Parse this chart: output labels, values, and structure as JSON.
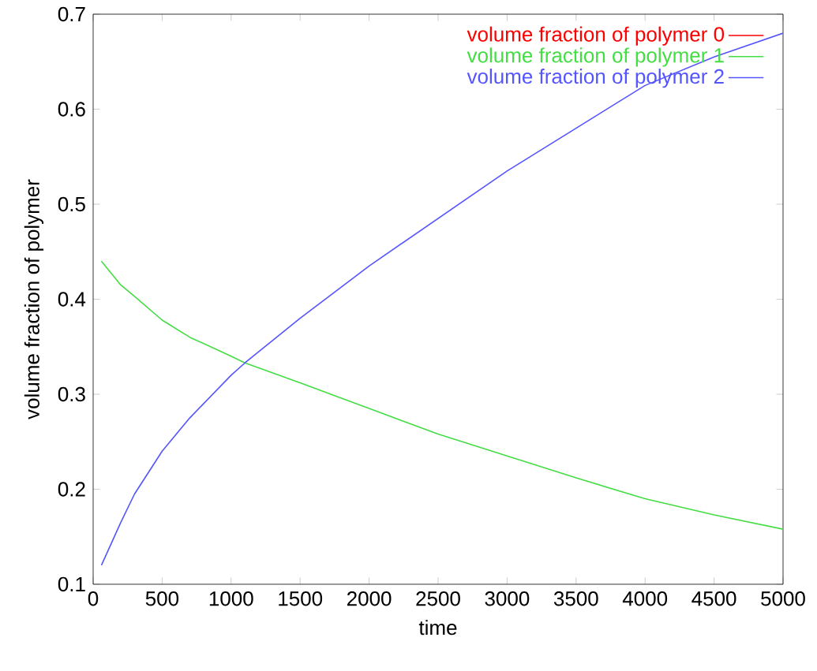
{
  "chart_data": {
    "type": "line",
    "xlabel": "time",
    "ylabel": "volume fraction of polymer",
    "xlim": [
      0,
      5000
    ],
    "ylim": [
      0.1,
      0.7
    ],
    "xticks": [
      0,
      500,
      1000,
      1500,
      2000,
      2500,
      3000,
      3500,
      4000,
      4500,
      5000
    ],
    "yticks": [
      0.1,
      0.2,
      0.3,
      0.4,
      0.5,
      0.6,
      0.7
    ],
    "legend": "top right",
    "marker": "none",
    "line_style": "solid",
    "grid": false,
    "x": [
      60,
      200,
      300,
      500,
      700,
      1000,
      1100,
      1500,
      2000,
      2500,
      3000,
      3500,
      4000,
      4500,
      5000
    ],
    "series": [
      {
        "name": "volume fraction of polymer 0",
        "color": "#ff0000",
        "values": [
          null,
          null,
          null,
          null,
          null,
          null,
          null,
          null,
          null,
          null,
          null,
          null,
          null,
          null,
          null
        ]
      },
      {
        "name": "volume fraction of polymer 1",
        "color": "#44dd44",
        "values": [
          0.44,
          0.415,
          0.403,
          0.378,
          0.36,
          0.34,
          0.333,
          0.312,
          0.285,
          0.258,
          0.235,
          0.212,
          0.19,
          0.173,
          0.158
        ]
      },
      {
        "name": "volume fraction of polymer 2",
        "color": "#5555ff",
        "values": [
          0.12,
          0.165,
          0.195,
          0.24,
          0.275,
          0.32,
          0.333,
          0.38,
          0.435,
          0.485,
          0.535,
          0.58,
          0.625,
          0.655,
          0.68
        ]
      }
    ]
  }
}
